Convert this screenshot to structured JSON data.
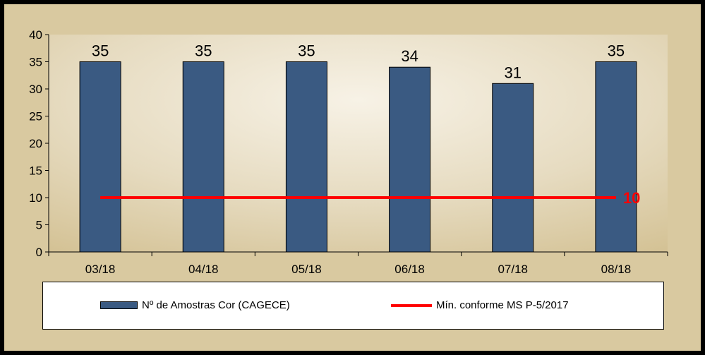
{
  "chart_data": {
    "type": "bar",
    "categories": [
      "03/18",
      "04/18",
      "05/18",
      "06/18",
      "07/18",
      "08/18"
    ],
    "series": [
      {
        "name": "Nº de Amostras Cor (CAGECE)",
        "type": "bar",
        "values": [
          35,
          35,
          35,
          34,
          31,
          35
        ],
        "color": "#3a5a82"
      },
      {
        "name": "Mín. conforme MS P-5/2017",
        "type": "line",
        "values": [
          10,
          10,
          10,
          10,
          10,
          10
        ],
        "color": "#ff0000"
      }
    ],
    "value_labels": [
      "35",
      "35",
      "35",
      "34",
      "31",
      "35"
    ],
    "line_label": "10",
    "ylim": [
      0,
      40
    ],
    "yticks": [
      0,
      5,
      10,
      15,
      20,
      25,
      30,
      35,
      40
    ],
    "ytick_labels": [
      "0",
      "5",
      "10",
      "15",
      "20",
      "25",
      "30",
      "35",
      "40"
    ],
    "grid": false,
    "legend_position": "bottom"
  }
}
